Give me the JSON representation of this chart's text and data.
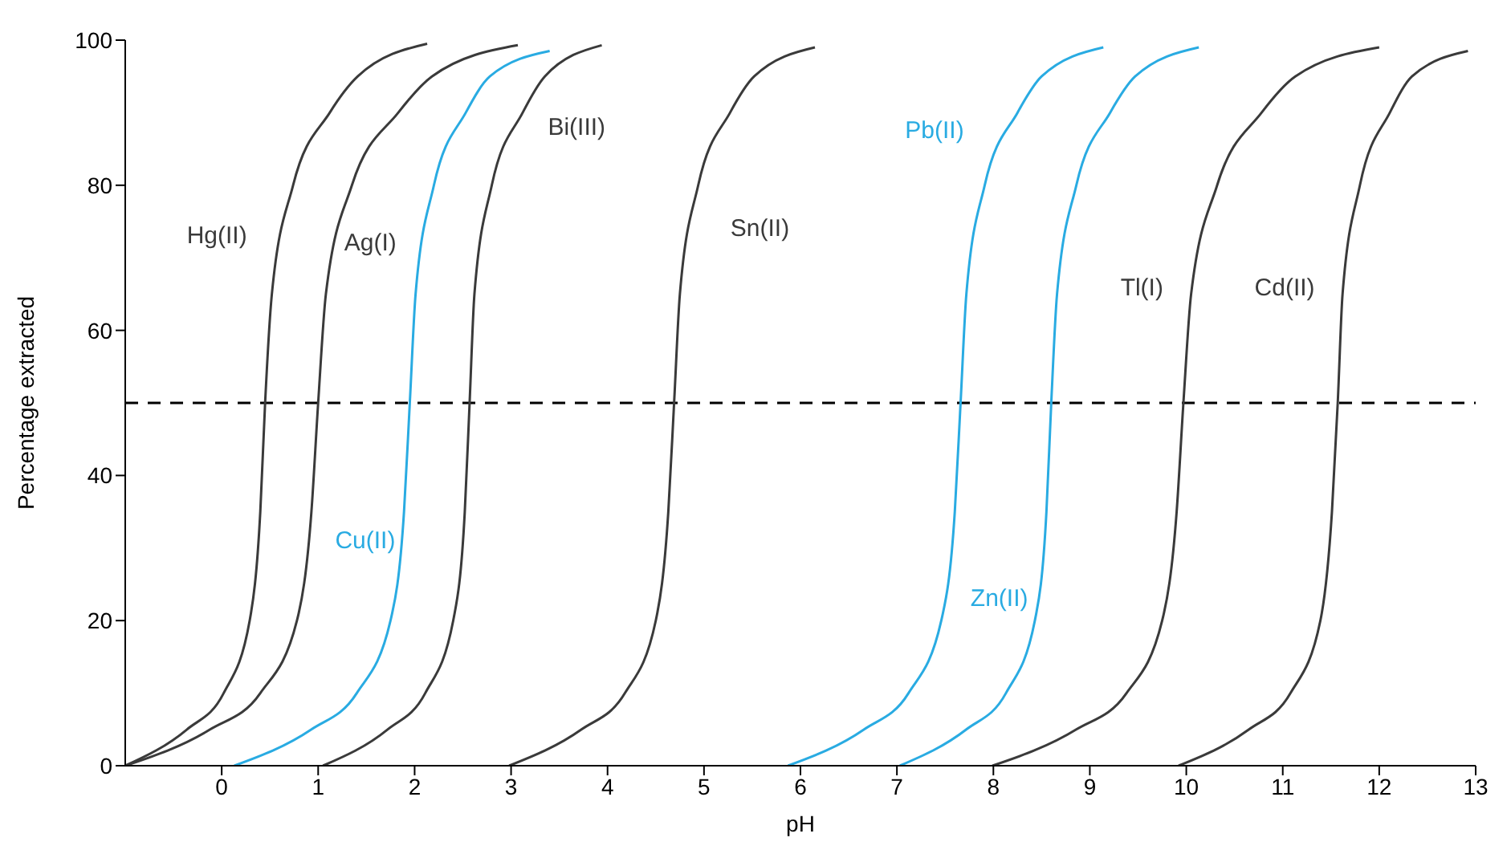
{
  "chart_data": {
    "type": "line",
    "xlabel": "pH",
    "ylabel": "Percentage extracted",
    "xlim": [
      -1,
      13
    ],
    "ylim": [
      0,
      100
    ],
    "xticks": [
      0,
      1,
      2,
      3,
      4,
      5,
      6,
      7,
      8,
      9,
      10,
      11,
      12,
      13
    ],
    "yticks": [
      0,
      20,
      40,
      60,
      80,
      100
    ],
    "grid": false,
    "legend": false,
    "marker": "none",
    "line_style": "solid",
    "series": [
      {
        "name": "Hg(II)",
        "color": "#3a3a3a",
        "x": [
          -1,
          -0.36,
          0.02,
          0.29,
          0.4,
          0.45,
          0.52,
          0.74,
          1.12,
          1.41,
          2.13
        ],
        "values": [
          0,
          5,
          10,
          20,
          35,
          50,
          65,
          80,
          90,
          95,
          99.5
        ]
      },
      {
        "name": "Ag(I)",
        "color": "#3a3a3a",
        "x": [
          -1,
          -0.12,
          0.4,
          0.78,
          0.93,
          1.0,
          1.08,
          1.35,
          1.83,
          2.18,
          3.07
        ],
        "values": [
          0,
          5,
          10,
          20,
          35,
          50,
          65,
          80,
          90,
          95,
          99.3
        ]
      },
      {
        "name": "Cu(II)",
        "color": "#29abe2",
        "x": [
          0.13,
          0.93,
          1.4,
          1.75,
          1.89,
          1.95,
          2.01,
          2.2,
          2.53,
          2.78,
          3.4
        ],
        "values": [
          0,
          5,
          10,
          20,
          35,
          50,
          65,
          80,
          90,
          95,
          98.5
        ]
      },
      {
        "name": "Bi(III)",
        "color": "#3a3a3a",
        "x": [
          1.05,
          1.72,
          2.11,
          2.4,
          2.52,
          2.57,
          2.62,
          2.8,
          3.12,
          3.35,
          3.94
        ],
        "values": [
          0,
          5,
          10,
          20,
          35,
          50,
          65,
          80,
          90,
          95,
          99.3
        ]
      },
      {
        "name": "Sn(II)",
        "color": "#3a3a3a",
        "x": [
          2.98,
          3.73,
          4.18,
          4.5,
          4.63,
          4.69,
          4.75,
          4.94,
          5.27,
          5.52,
          6.15
        ],
        "values": [
          0,
          5,
          10,
          20,
          35,
          50,
          65,
          80,
          90,
          95,
          99
        ]
      },
      {
        "name": "Pb(II)",
        "color": "#29abe2",
        "x": [
          5.87,
          6.66,
          7.12,
          7.46,
          7.6,
          7.66,
          7.72,
          7.91,
          8.25,
          8.5,
          9.14
        ],
        "values": [
          0,
          5,
          10,
          20,
          35,
          50,
          65,
          80,
          90,
          95,
          99
        ]
      },
      {
        "name": "Zn(II)",
        "color": "#29abe2",
        "x": [
          7.03,
          7.72,
          8.13,
          8.43,
          8.55,
          8.6,
          8.66,
          8.86,
          9.21,
          9.47,
          10.13
        ],
        "values": [
          0,
          5,
          10,
          20,
          35,
          50,
          65,
          80,
          90,
          95,
          99
        ]
      },
      {
        "name": "Tl(I)",
        "color": "#3a3a3a",
        "x": [
          7.99,
          8.86,
          9.38,
          9.75,
          9.9,
          9.97,
          10.05,
          10.32,
          10.78,
          11.13,
          12.0
        ],
        "values": [
          0,
          5,
          10,
          20,
          35,
          50,
          65,
          80,
          90,
          95,
          99
        ]
      },
      {
        "name": "Cd(II)",
        "color": "#3a3a3a",
        "x": [
          9.92,
          10.65,
          11.08,
          11.39,
          11.51,
          11.57,
          11.62,
          11.8,
          12.11,
          12.34,
          12.92
        ],
        "values": [
          0,
          5,
          10,
          20,
          35,
          50,
          65,
          80,
          90,
          95,
          98.5
        ]
      }
    ],
    "ref_lines": [
      {
        "axis": "y",
        "value": 50,
        "color": "#000000",
        "line_style": "dashed"
      }
    ]
  }
}
